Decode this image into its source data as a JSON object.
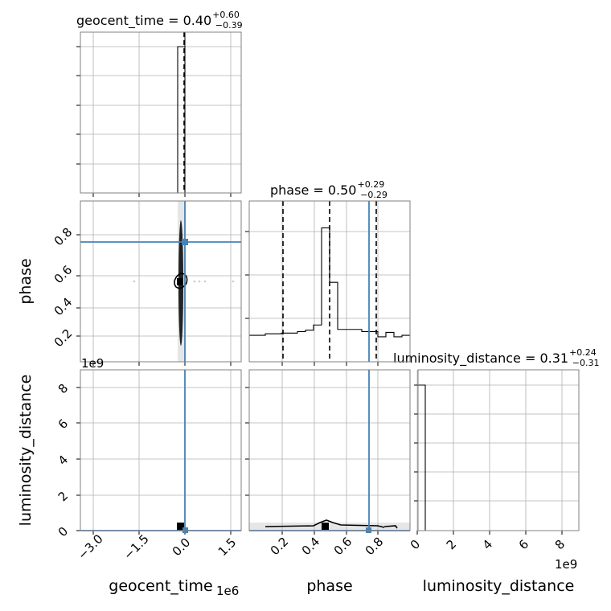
{
  "colors": {
    "truth": "#4682b4",
    "hist": "#000000",
    "grid": "#b0b0b0"
  },
  "chart_data": {
    "type": "corner",
    "parameters": [
      "geocent_time",
      "phase",
      "luminosity_distance"
    ],
    "titles": {
      "geocent_time": {
        "param": "geocent_time",
        "median": "0.40",
        "plus": "+0.60",
        "minus": "−0.39"
      },
      "phase": {
        "param": "phase",
        "median": "0.50",
        "plus": "+0.29",
        "minus": "−0.29"
      },
      "luminosity_distance": {
        "param": "luminosity_distance",
        "median": "0.31",
        "plus": "+0.24",
        "minus": "−0.31"
      }
    },
    "axes": {
      "geocent_time": {
        "label": "geocent_time",
        "range": [
          -3600000,
          1900000
        ],
        "ticks": [
          -3.0,
          -1.5,
          0.0,
          1.5
        ],
        "tick_labels": [
          "−3.0",
          "−1.5",
          "0.0",
          "1.5"
        ],
        "offset_text": "1e6"
      },
      "phase": {
        "label": "phase",
        "range": [
          0.0,
          1.0
        ],
        "ticks": [
          0.2,
          0.4,
          0.6,
          0.8
        ],
        "tick_labels": [
          "0.2",
          "0.4",
          "0.6",
          "0.8"
        ]
      },
      "luminosity_distance": {
        "label": "luminosity_distance",
        "range": [
          0,
          8900000000
        ],
        "ticks": [
          0,
          2,
          4,
          6,
          8
        ],
        "tick_labels": [
          "0",
          "2",
          "4",
          "6",
          "8"
        ],
        "offset_text": "1e9"
      }
    },
    "truths": {
      "geocent_time": 0.0,
      "phase": 0.745,
      "luminosity_distance": 0.0
    },
    "quantiles": {
      "phase": [
        0.21,
        0.5,
        0.79
      ]
    },
    "histograms": {
      "geocent_time": {
        "edges_1e6": [
          -0.25,
          0.0,
          0.05
        ],
        "heights": [
          1.0,
          0.0
        ]
      },
      "phase": {
        "edges": [
          0.0,
          0.1,
          0.2,
          0.3,
          0.35,
          0.4,
          0.45,
          0.5,
          0.55,
          0.6,
          0.7,
          0.8,
          0.85,
          0.9,
          0.95,
          1.0
        ],
        "heights": [
          0.18,
          0.19,
          0.195,
          0.205,
          0.215,
          0.25,
          0.91,
          0.54,
          0.22,
          0.22,
          0.205,
          0.17,
          0.2,
          0.17,
          0.18
        ]
      },
      "luminosity_distance": {
        "edges_1e9": [
          0.0,
          0.25,
          0.5
        ],
        "heights": [
          1.0,
          0.0
        ]
      }
    },
    "grid": true
  }
}
